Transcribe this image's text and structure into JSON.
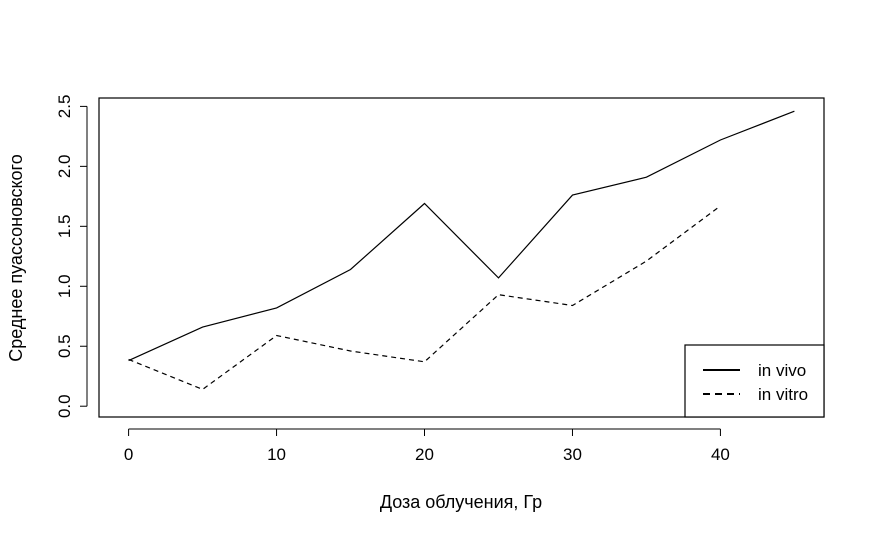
{
  "chart_data": {
    "type": "line",
    "title": "",
    "xlabel": "Доза облучения, Гр",
    "ylabel": "Среднее пуассоновского",
    "xlim": [
      -2,
      47
    ],
    "ylim": [
      -0.09,
      2.57
    ],
    "x_ticks": [
      0,
      10,
      20,
      30,
      40
    ],
    "y_ticks": [
      0.0,
      0.5,
      1.0,
      1.5,
      2.0,
      2.5
    ],
    "x_tick_labels": [
      "0",
      "10",
      "20",
      "30",
      "40"
    ],
    "y_tick_labels": [
      "0.0",
      "0.5",
      "1.0",
      "1.5",
      "2.0",
      "2.5"
    ],
    "grid": false,
    "legend_position": "bottom-right",
    "series": [
      {
        "name": "in vivo",
        "line_style": "solid",
        "color": "#000000",
        "x": [
          0,
          5,
          10,
          15,
          20,
          25,
          30,
          35,
          40,
          45
        ],
        "y": [
          0.38,
          0.66,
          0.82,
          1.14,
          1.69,
          1.07,
          1.76,
          1.91,
          2.22,
          2.46
        ]
      },
      {
        "name": "in vitro",
        "line_style": "dashed",
        "color": "#000000",
        "x": [
          0,
          5,
          10,
          15,
          20,
          25,
          30,
          35,
          40
        ],
        "y": [
          0.39,
          0.14,
          0.59,
          0.46,
          0.37,
          0.93,
          0.84,
          1.21,
          1.67
        ]
      }
    ]
  }
}
